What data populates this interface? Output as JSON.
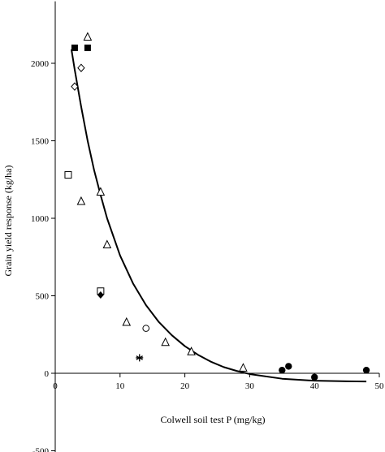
{
  "chart_data": {
    "type": "scatter",
    "title": "",
    "xlabel": "Colwell soil test P (mg/kg)",
    "ylabel": "Grain yield response (kg/ha)",
    "xlim": [
      0,
      50
    ],
    "ylim": [
      -500,
      2400
    ],
    "x_ticks": [
      0,
      10,
      20,
      30,
      40,
      50
    ],
    "y_ticks": [
      -500,
      0,
      500,
      1000,
      1500,
      2000
    ],
    "grid": false,
    "legend": "none",
    "series": [
      {
        "marker": "filled-square",
        "points": [
          [
            3,
            2100
          ],
          [
            5,
            2100
          ]
        ]
      },
      {
        "marker": "open-triangle",
        "points": [
          [
            5,
            2170
          ],
          [
            4,
            1110
          ],
          [
            7,
            1170
          ],
          [
            8,
            830
          ],
          [
            11,
            330
          ],
          [
            17,
            200
          ],
          [
            21,
            140
          ],
          [
            29,
            35
          ]
        ]
      },
      {
        "marker": "open-diamond",
        "points": [
          [
            4,
            1970
          ],
          [
            3,
            1850
          ]
        ]
      },
      {
        "marker": "open-square",
        "points": [
          [
            2,
            1280
          ],
          [
            7,
            530
          ]
        ]
      },
      {
        "marker": "filled-diamond",
        "points": [
          [
            7,
            505
          ]
        ]
      },
      {
        "marker": "open-circle",
        "points": [
          [
            14,
            290
          ]
        ]
      },
      {
        "marker": "asterisk",
        "points": [
          [
            13,
            100
          ]
        ]
      },
      {
        "marker": "filled-circle",
        "points": [
          [
            35,
            20
          ],
          [
            36,
            45
          ],
          [
            40,
            -25
          ],
          [
            48,
            20
          ]
        ]
      }
    ],
    "fitted_curve": {
      "style": "solid-black",
      "points": [
        [
          2.5,
          2090
        ],
        [
          3,
          1960
        ],
        [
          4,
          1720
        ],
        [
          5,
          1500
        ],
        [
          6,
          1310
        ],
        [
          7,
          1150
        ],
        [
          8,
          1000
        ],
        [
          10,
          760
        ],
        [
          12,
          580
        ],
        [
          14,
          440
        ],
        [
          16,
          330
        ],
        [
          18,
          245
        ],
        [
          20,
          175
        ],
        [
          22,
          120
        ],
        [
          24,
          75
        ],
        [
          26,
          40
        ],
        [
          28,
          15
        ],
        [
          30,
          -5
        ],
        [
          35,
          -35
        ],
        [
          40,
          -48
        ],
        [
          45,
          -52
        ],
        [
          48,
          -53
        ]
      ]
    }
  }
}
